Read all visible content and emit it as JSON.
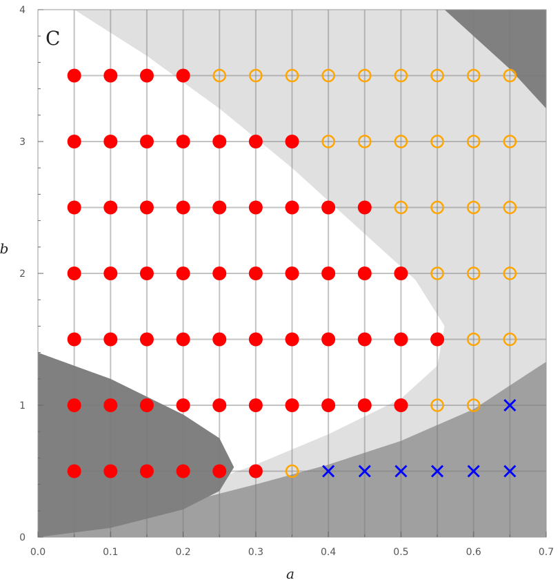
{
  "chart_data": {
    "type": "scatter",
    "panel_label": "C",
    "xlabel": "a",
    "ylabel": "b",
    "xlim": [
      0,
      0.7
    ],
    "ylim": [
      0,
      4
    ],
    "xticks": [
      "0.0",
      "0.1",
      "0.2",
      "0.3",
      "0.4",
      "0.5",
      "0.6",
      "0.7"
    ],
    "xtick_values": [
      0,
      0.1,
      0.2,
      0.3,
      0.4,
      0.5,
      0.6,
      0.7
    ],
    "yticks": [
      "0",
      "1",
      "2",
      "3",
      "4"
    ],
    "ytick_values": [
      0,
      1,
      2,
      3,
      4
    ],
    "grid": true,
    "colors": {
      "filled": "#ff0000",
      "open": "#ffa500",
      "cross": "#0000ff",
      "light_region": "#e0e0e0",
      "mid_region": "#a0a0a0",
      "dark_region": "#808080"
    },
    "series": [
      {
        "marker": "filled-circle",
        "points": [
          [
            0.05,
            0.5
          ],
          [
            0.1,
            0.5
          ],
          [
            0.15,
            0.5
          ],
          [
            0.2,
            0.5
          ],
          [
            0.25,
            0.5
          ],
          [
            0.3,
            0.5
          ],
          [
            0.05,
            1.0
          ],
          [
            0.1,
            1.0
          ],
          [
            0.15,
            1.0
          ],
          [
            0.2,
            1.0
          ],
          [
            0.25,
            1.0
          ],
          [
            0.3,
            1.0
          ],
          [
            0.35,
            1.0
          ],
          [
            0.4,
            1.0
          ],
          [
            0.45,
            1.0
          ],
          [
            0.5,
            1.0
          ],
          [
            0.05,
            1.5
          ],
          [
            0.1,
            1.5
          ],
          [
            0.15,
            1.5
          ],
          [
            0.2,
            1.5
          ],
          [
            0.25,
            1.5
          ],
          [
            0.3,
            1.5
          ],
          [
            0.35,
            1.5
          ],
          [
            0.4,
            1.5
          ],
          [
            0.45,
            1.5
          ],
          [
            0.5,
            1.5
          ],
          [
            0.55,
            1.5
          ],
          [
            0.05,
            2.0
          ],
          [
            0.1,
            2.0
          ],
          [
            0.15,
            2.0
          ],
          [
            0.2,
            2.0
          ],
          [
            0.25,
            2.0
          ],
          [
            0.3,
            2.0
          ],
          [
            0.35,
            2.0
          ],
          [
            0.4,
            2.0
          ],
          [
            0.45,
            2.0
          ],
          [
            0.5,
            2.0
          ],
          [
            0.05,
            2.5
          ],
          [
            0.1,
            2.5
          ],
          [
            0.15,
            2.5
          ],
          [
            0.2,
            2.5
          ],
          [
            0.25,
            2.5
          ],
          [
            0.3,
            2.5
          ],
          [
            0.35,
            2.5
          ],
          [
            0.4,
            2.5
          ],
          [
            0.45,
            2.5
          ],
          [
            0.05,
            3.0
          ],
          [
            0.1,
            3.0
          ],
          [
            0.15,
            3.0
          ],
          [
            0.2,
            3.0
          ],
          [
            0.25,
            3.0
          ],
          [
            0.3,
            3.0
          ],
          [
            0.35,
            3.0
          ],
          [
            0.05,
            3.5
          ],
          [
            0.1,
            3.5
          ],
          [
            0.15,
            3.5
          ],
          [
            0.2,
            3.5
          ]
        ]
      },
      {
        "marker": "open-circle",
        "points": [
          [
            0.35,
            0.5
          ],
          [
            0.55,
            1.0
          ],
          [
            0.6,
            1.0
          ],
          [
            0.6,
            1.5
          ],
          [
            0.65,
            1.5
          ],
          [
            0.55,
            2.0
          ],
          [
            0.6,
            2.0
          ],
          [
            0.65,
            2.0
          ],
          [
            0.5,
            2.5
          ],
          [
            0.55,
            2.5
          ],
          [
            0.6,
            2.5
          ],
          [
            0.65,
            2.5
          ],
          [
            0.4,
            3.0
          ],
          [
            0.45,
            3.0
          ],
          [
            0.5,
            3.0
          ],
          [
            0.55,
            3.0
          ],
          [
            0.6,
            3.0
          ],
          [
            0.65,
            3.0
          ],
          [
            0.25,
            3.5
          ],
          [
            0.3,
            3.5
          ],
          [
            0.35,
            3.5
          ],
          [
            0.4,
            3.5
          ],
          [
            0.45,
            3.5
          ],
          [
            0.5,
            3.5
          ],
          [
            0.55,
            3.5
          ],
          [
            0.6,
            3.5
          ],
          [
            0.65,
            3.5
          ]
        ]
      },
      {
        "marker": "cross",
        "points": [
          [
            0.4,
            0.5
          ],
          [
            0.45,
            0.5
          ],
          [
            0.5,
            0.5
          ],
          [
            0.55,
            0.5
          ],
          [
            0.6,
            0.5
          ],
          [
            0.65,
            0.5
          ],
          [
            0.65,
            1.0
          ]
        ]
      }
    ],
    "regions": [
      {
        "shade": "light",
        "boundary": [
          [
            0.05,
            4.0
          ],
          [
            0.15,
            3.65
          ],
          [
            0.25,
            3.25
          ],
          [
            0.35,
            2.8
          ],
          [
            0.45,
            2.3
          ],
          [
            0.52,
            1.95
          ],
          [
            0.56,
            1.6
          ],
          [
            0.55,
            1.3
          ],
          [
            0.5,
            1.05
          ],
          [
            0.4,
            0.78
          ],
          [
            0.3,
            0.55
          ],
          [
            0.2,
            0.35
          ],
          [
            0.1,
            0.18
          ],
          [
            0.0,
            0.0
          ]
        ]
      },
      {
        "shade": "mid",
        "boundary": [
          [
            0.0,
            0.0
          ],
          [
            0.1,
            0.13
          ],
          [
            0.2,
            0.26
          ],
          [
            0.3,
            0.4
          ],
          [
            0.4,
            0.55
          ],
          [
            0.5,
            0.73
          ],
          [
            0.6,
            0.97
          ],
          [
            0.7,
            1.33
          ]
        ]
      },
      {
        "shade": "dark",
        "boundary": [
          [
            0.0,
            1.4
          ],
          [
            0.1,
            1.2
          ],
          [
            0.2,
            0.93
          ],
          [
            0.25,
            0.75
          ],
          [
            0.27,
            0.53
          ],
          [
            0.25,
            0.35
          ],
          [
            0.2,
            0.21
          ],
          [
            0.1,
            0.07
          ],
          [
            0.0,
            0.0
          ]
        ]
      },
      {
        "shade": "dark",
        "boundary": [
          [
            0.56,
            4.0
          ],
          [
            0.6,
            3.8
          ],
          [
            0.65,
            3.55
          ],
          [
            0.7,
            3.25
          ]
        ]
      }
    ]
  }
}
